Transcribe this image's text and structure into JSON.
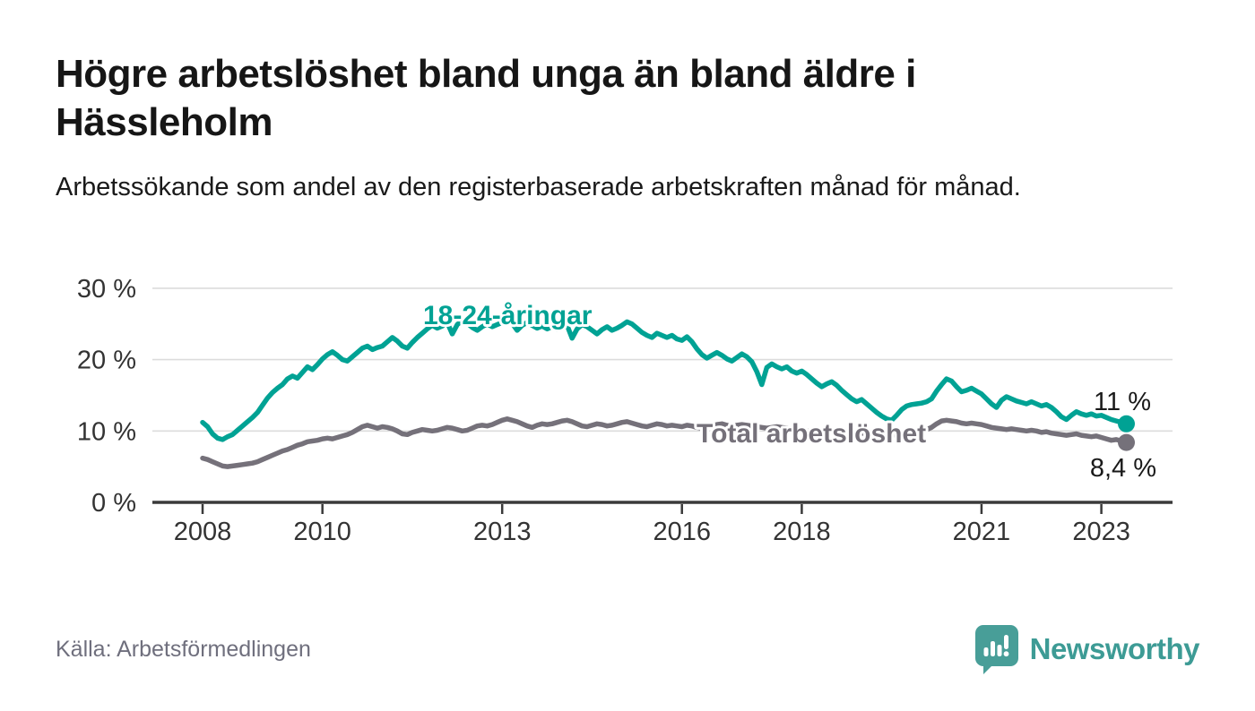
{
  "header": {
    "title": "Högre arbetslöshet bland unga än bland äldre i Hässleholm",
    "subtitle": "Arbetssökande som andel av den registerbaserade arbetskraften månad för månad."
  },
  "footer": {
    "source": "Källa: Arbetsförmedlingen",
    "brand": "Newsworthy"
  },
  "colors": {
    "youth_line": "#00a294",
    "total_line": "#75717a",
    "grid": "#dcdcdc",
    "axis": "#3a3a3a",
    "tick_text": "#333333",
    "brand_teal": "#3d9b95",
    "logo_bubble": "#489e98"
  },
  "chart_data": {
    "type": "line",
    "title": "Högre arbetslöshet bland unga än bland äldre i Hässleholm",
    "xlabel": "",
    "ylabel": "",
    "units": "%",
    "x_start_year": 2008,
    "x_frequency": "monthly",
    "x_end": "2023-06",
    "ylim": [
      0,
      30
    ],
    "grid": "horizontal",
    "legend_position": "inline-labels",
    "y_ticks": [
      {
        "value": 0,
        "label": "0 %"
      },
      {
        "value": 10,
        "label": "10 %"
      },
      {
        "value": 20,
        "label": "20 %"
      },
      {
        "value": 30,
        "label": "30 %"
      }
    ],
    "x_ticks": [
      {
        "year": 2008,
        "label": "2008"
      },
      {
        "year": 2010,
        "label": "2010"
      },
      {
        "year": 2013,
        "label": "2013"
      },
      {
        "year": 2016,
        "label": "2016"
      },
      {
        "year": 2018,
        "label": "2018"
      },
      {
        "year": 2021,
        "label": "2021"
      },
      {
        "year": 2023,
        "label": "2023"
      }
    ],
    "series": [
      {
        "name": "Total arbetslöshet",
        "color": "#75717a",
        "end_label": "8,4 %",
        "last_value": 8.4,
        "values": [
          6.2,
          6.0,
          5.7,
          5.4,
          5.1,
          5.0,
          5.1,
          5.2,
          5.3,
          5.4,
          5.5,
          5.7,
          6.0,
          6.3,
          6.6,
          6.9,
          7.2,
          7.4,
          7.7,
          8.0,
          8.2,
          8.5,
          8.6,
          8.7,
          8.9,
          9.0,
          8.9,
          9.1,
          9.3,
          9.5,
          9.8,
          10.2,
          10.6,
          10.8,
          10.6,
          10.4,
          10.6,
          10.5,
          10.3,
          10.0,
          9.6,
          9.5,
          9.8,
          10.0,
          10.2,
          10.1,
          10.0,
          10.1,
          10.3,
          10.5,
          10.4,
          10.2,
          10.0,
          10.1,
          10.4,
          10.7,
          10.8,
          10.7,
          10.9,
          11.2,
          11.5,
          11.7,
          11.5,
          11.3,
          11.0,
          10.7,
          10.5,
          10.8,
          11.0,
          10.9,
          11.0,
          11.2,
          11.4,
          11.5,
          11.3,
          11.0,
          10.7,
          10.6,
          10.8,
          11.0,
          10.9,
          10.7,
          10.8,
          11.0,
          11.2,
          11.3,
          11.1,
          10.9,
          10.7,
          10.6,
          10.8,
          11.0,
          10.9,
          10.7,
          10.8,
          10.7,
          10.6,
          10.8,
          10.7,
          10.5,
          10.4,
          10.5,
          10.7,
          10.9,
          11.0,
          10.8,
          10.7,
          10.8,
          10.9,
          10.8,
          10.7,
          10.6,
          10.5,
          10.4,
          10.5,
          10.6,
          10.5,
          10.4,
          10.3,
          10.2,
          10.1,
          10.0,
          9.9,
          9.8,
          9.7,
          9.8,
          9.9,
          9.8,
          9.7,
          9.6,
          9.5,
          9.6,
          9.7,
          9.6,
          9.5,
          9.4,
          9.3,
          9.4,
          9.5,
          9.4,
          9.5,
          9.6,
          9.7,
          9.9,
          10.0,
          10.2,
          10.5,
          11.0,
          11.4,
          11.5,
          11.4,
          11.3,
          11.1,
          11.0,
          11.1,
          11.0,
          10.9,
          10.7,
          10.5,
          10.4,
          10.3,
          10.2,
          10.3,
          10.2,
          10.1,
          10.0,
          10.1,
          10.0,
          9.8,
          9.9,
          9.7,
          9.6,
          9.5,
          9.4,
          9.5,
          9.6,
          9.4,
          9.3,
          9.2,
          9.3,
          9.1,
          8.9,
          8.7,
          8.8,
          8.6,
          8.4
        ]
      },
      {
        "name": "18-24-åringar",
        "color": "#00a294",
        "end_label": "11 %",
        "last_value": 11.0,
        "values": [
          11.2,
          10.6,
          9.6,
          9.0,
          8.8,
          9.2,
          9.5,
          10.1,
          10.7,
          11.3,
          11.9,
          12.6,
          13.6,
          14.6,
          15.4,
          16.0,
          16.5,
          17.3,
          17.7,
          17.4,
          18.2,
          19.0,
          18.6,
          19.3,
          20.1,
          20.7,
          21.1,
          20.6,
          20.0,
          19.8,
          20.4,
          21.0,
          21.6,
          21.9,
          21.4,
          21.7,
          21.9,
          22.5,
          23.1,
          22.6,
          21.9,
          21.6,
          22.4,
          23.1,
          23.7,
          24.3,
          24.8,
          24.4,
          24.7,
          25.2,
          23.6,
          24.9,
          25.5,
          25.1,
          24.5,
          24.1,
          24.6,
          25.0,
          24.6,
          24.9,
          25.2,
          25.6,
          25.1,
          24.1,
          24.8,
          25.2,
          24.8,
          24.4,
          24.7,
          24.3,
          24.6,
          24.2,
          24.5,
          24.8,
          23.0,
          24.3,
          24.9,
          24.6,
          24.1,
          23.6,
          24.2,
          24.6,
          24.1,
          24.4,
          24.8,
          25.3,
          25.0,
          24.4,
          23.8,
          23.4,
          23.1,
          23.7,
          23.4,
          23.1,
          23.4,
          22.9,
          22.7,
          23.2,
          22.5,
          21.5,
          20.7,
          20.2,
          20.6,
          21.0,
          20.6,
          20.1,
          19.8,
          20.3,
          20.8,
          20.4,
          19.7,
          18.3,
          16.5,
          18.9,
          19.4,
          19.0,
          18.7,
          19.0,
          18.4,
          18.1,
          18.4,
          17.9,
          17.3,
          16.7,
          16.2,
          16.6,
          16.9,
          16.4,
          15.7,
          15.1,
          14.5,
          14.1,
          14.4,
          13.8,
          13.2,
          12.6,
          12.1,
          11.7,
          11.5,
          12.2,
          13.0,
          13.5,
          13.7,
          13.8,
          13.9,
          14.1,
          14.5,
          15.6,
          16.5,
          17.3,
          17.0,
          16.2,
          15.5,
          15.7,
          16.0,
          15.6,
          15.2,
          14.5,
          13.8,
          13.3,
          14.3,
          14.8,
          14.5,
          14.2,
          14.0,
          13.8,
          14.1,
          13.8,
          13.5,
          13.7,
          13.3,
          12.7,
          12.0,
          11.6,
          12.2,
          12.7,
          12.4,
          12.2,
          12.4,
          12.1,
          12.2,
          11.9,
          11.6,
          11.4,
          11.2,
          11.0
        ]
      }
    ]
  }
}
